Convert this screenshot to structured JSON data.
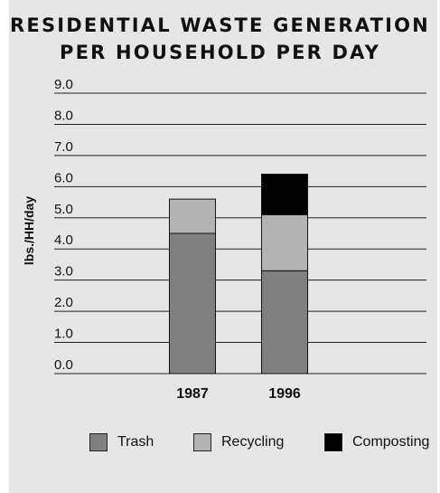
{
  "chart_data": {
    "type": "bar",
    "stacked": true,
    "title": "RESIDENTIAL WASTE GENERATION PER HOUSEHOLD PER DAY",
    "title_lines": [
      "RESIDENTIAL WASTE GENERATION",
      "PER HOUSEHOLD PER DAY"
    ],
    "xlabel": "",
    "ylabel": "lbs./HH/day",
    "ylim": [
      0,
      9
    ],
    "yticks": [
      "0.0",
      "1.0",
      "2.0",
      "3.0",
      "4.0",
      "5.0",
      "6.0",
      "7.0",
      "8.0",
      "9.0"
    ],
    "grid": true,
    "legend_position": "bottom",
    "categories": [
      "1987",
      "1996"
    ],
    "series": [
      {
        "name": "Trash",
        "values": [
          4.5,
          3.3
        ],
        "color": "#808080"
      },
      {
        "name": "Recycling",
        "values": [
          1.1,
          1.8
        ],
        "color": "#b3b3b3"
      },
      {
        "name": "Composting",
        "values": [
          0.0,
          1.3
        ],
        "color": "#000000"
      }
    ]
  }
}
